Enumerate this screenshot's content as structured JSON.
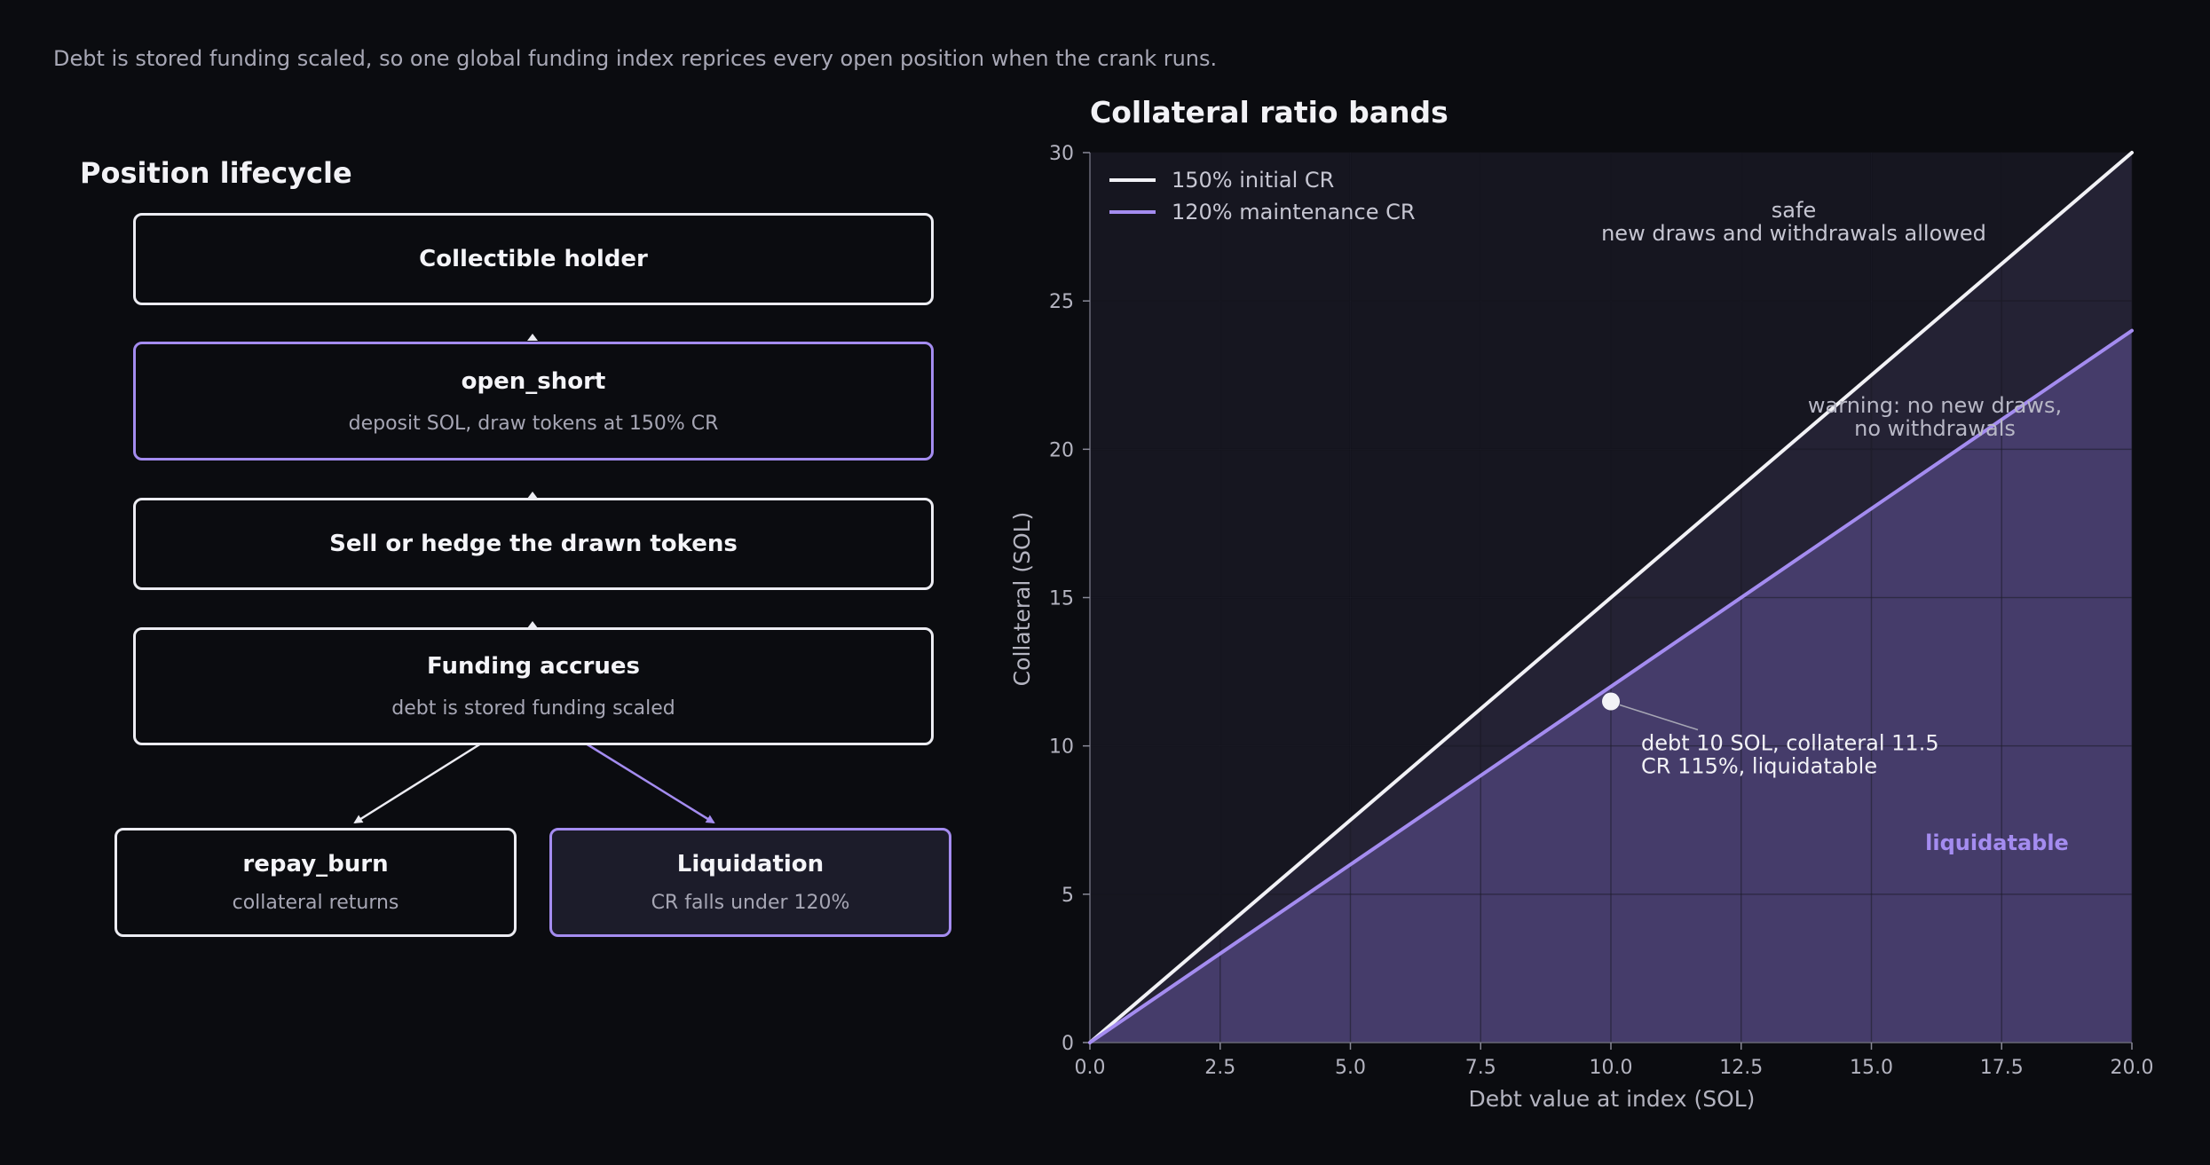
{
  "caption": "Debt is stored funding scaled, so one global funding index reprices every open position when the crank runs.",
  "flow": {
    "title": "Position lifecycle",
    "nodes": [
      {
        "label": "Collectible holder",
        "sub": ""
      },
      {
        "label": "open_short",
        "sub": "deposit SOL, draw tokens at 150% CR"
      },
      {
        "label": "Sell or hedge the drawn tokens",
        "sub": ""
      },
      {
        "label": "Funding accrues",
        "sub": "debt is stored funding scaled"
      },
      {
        "label": "repay_burn",
        "sub": "collateral returns"
      },
      {
        "label": "Liquidation",
        "sub": "CR falls under 120%"
      }
    ]
  },
  "chart_data": {
    "type": "line",
    "title": "Collateral ratio bands",
    "xlabel": "Debt value at index (SOL)",
    "ylabel": "Collateral (SOL)",
    "xlim": [
      0,
      20
    ],
    "ylim": [
      0,
      30
    ],
    "xticks": [
      0.0,
      2.5,
      5.0,
      7.5,
      10.0,
      12.5,
      15.0,
      17.5,
      20.0
    ],
    "xtick_labels": [
      "0.0",
      "2.5",
      "5.0",
      "7.5",
      "10.0",
      "12.5",
      "15.0",
      "17.5",
      "20.0"
    ],
    "yticks": [
      0,
      5,
      10,
      15,
      20,
      25,
      30
    ],
    "ytick_labels": [
      "0",
      "5",
      "10",
      "15",
      "20",
      "25",
      "30"
    ],
    "grid": true,
    "legend_position": "top-left",
    "series": [
      {
        "name": "150% initial CR",
        "color": "#f2f2f6",
        "x": [
          0,
          20
        ],
        "y": [
          0,
          30
        ]
      },
      {
        "name": "120% maintenance CR",
        "color": "#a48cf0",
        "x": [
          0,
          20
        ],
        "y": [
          0,
          24
        ]
      }
    ],
    "point": {
      "x": 10,
      "y": 11.5,
      "lines": [
        "debt 10 SOL, collateral 11.5",
        "CR 115%, liquidatable"
      ]
    },
    "regions": [
      {
        "lines": [
          "safe",
          "new draws and withdrawals allowed"
        ]
      },
      {
        "lines": [
          "warning: no new draws,",
          "no withdrawals"
        ]
      },
      {
        "lines": [
          "liquidatable"
        ],
        "color": "#a48cf0"
      }
    ],
    "colors": {
      "plot_bg": "#161620",
      "warning_band": "#242234",
      "liquidatable_band": "#453c6a",
      "grid": "#2c2c3a"
    }
  }
}
